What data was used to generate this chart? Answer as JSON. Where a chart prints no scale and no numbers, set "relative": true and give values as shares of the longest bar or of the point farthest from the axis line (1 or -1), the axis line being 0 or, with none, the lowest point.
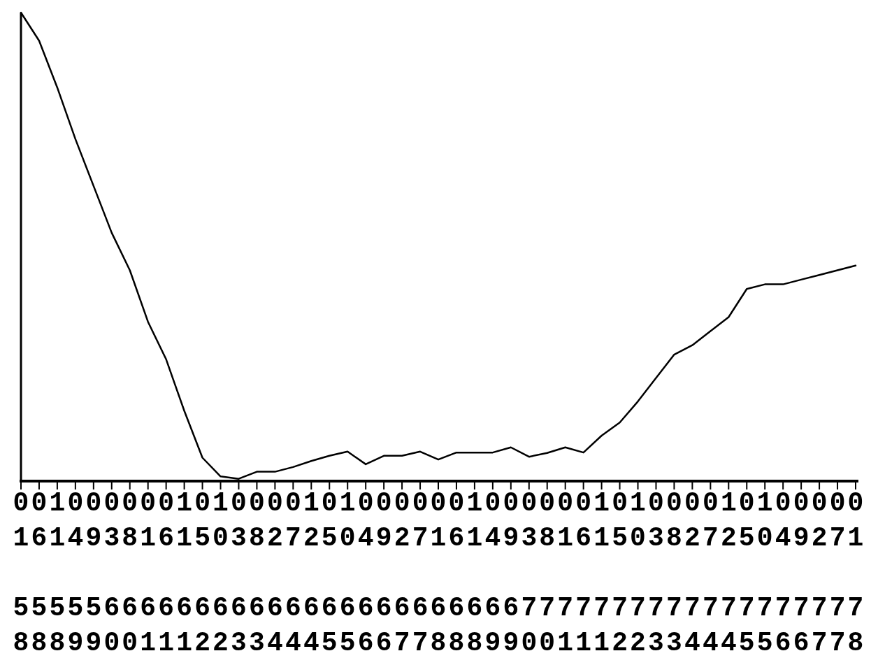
{
  "chart_data": {
    "type": "line",
    "relative": true,
    "color": "#000000",
    "categories": [
      "01\n58",
      "06\n58",
      "11\n58",
      "04\n59",
      "09\n59",
      "03\n60",
      "08\n60",
      "01\n61",
      "06\n61",
      "11\n61",
      "05\n62",
      "10\n62",
      "03\n63",
      "08\n63",
      "02\n64",
      "07\n64",
      "12\n64",
      "05\n65",
      "10\n65",
      "04\n66",
      "09\n66",
      "02\n67",
      "07\n67",
      "01\n68",
      "06\n68",
      "11\n68",
      "04\n69",
      "09\n69",
      "03\n70",
      "08\n70",
      "01\n71",
      "06\n71",
      "11\n71",
      "05\n72",
      "10\n72",
      "03\n73",
      "08\n73",
      "02\n74",
      "07\n74",
      "12\n74",
      "05\n75",
      "10\n75",
      "04\n76",
      "09\n76",
      "02\n77",
      "07\n77",
      "01\n78"
    ],
    "values": [
      1,
      0.94,
      0.84,
      0.73,
      0.63,
      0.53,
      0.45,
      0.34,
      0.26,
      0.15,
      0.05,
      0.01,
      0.005,
      0.02,
      0.02,
      0.03,
      0.043,
      0.054,
      0.063,
      0.036,
      0.054,
      0.054,
      0.063,
      0.046,
      0.061,
      0.061,
      0.061,
      0.072,
      0.052,
      0.06,
      0.072,
      0.061,
      0.097,
      0.125,
      0.17,
      0.22,
      0.27,
      0.29,
      0.32,
      0.35,
      0.41,
      0.42,
      0.42,
      0.43,
      0.44,
      0.45,
      0.46
    ]
  }
}
